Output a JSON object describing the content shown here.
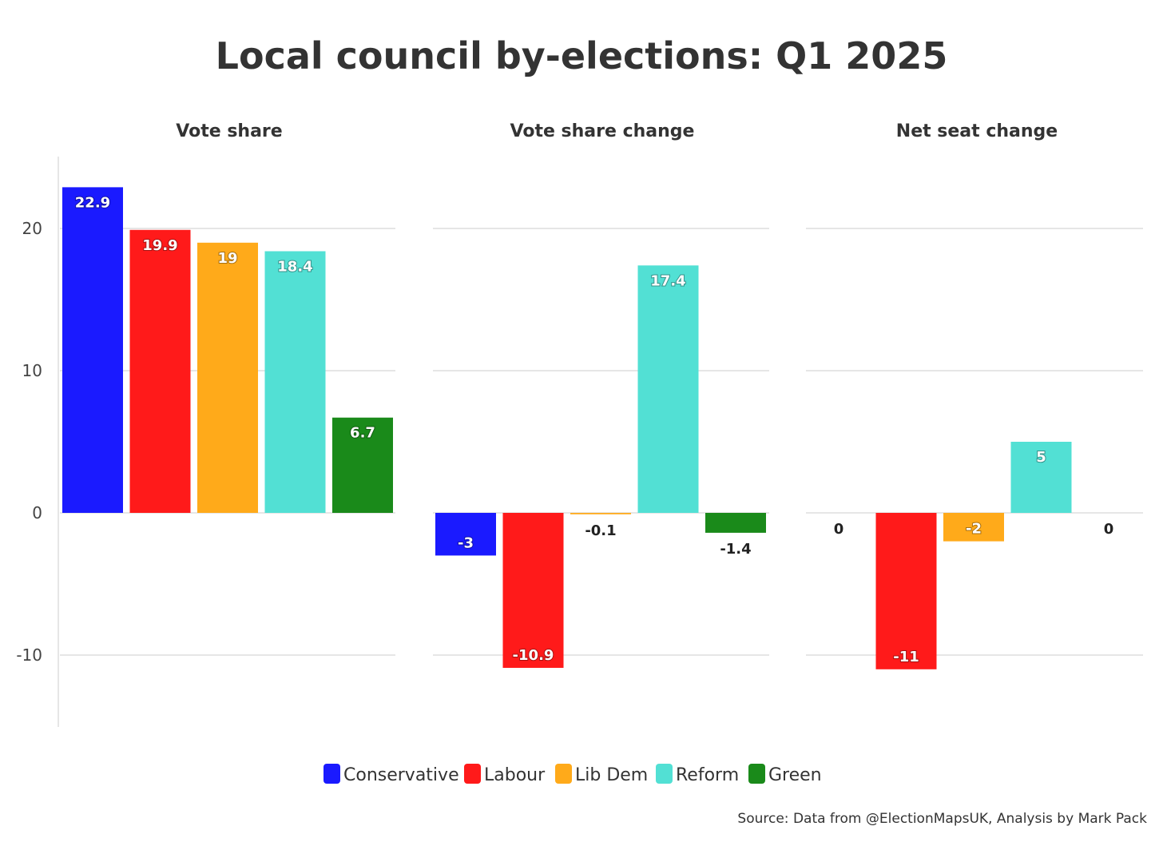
{
  "title": "Local council by-elections: Q1 2025",
  "source": "Source: Data from @ElectionMapsUK, Analysis by Mark Pack",
  "chart_data": {
    "type": "bar",
    "ylim": [
      -15,
      25
    ],
    "yticks": [
      -10,
      0,
      10,
      20
    ],
    "grid": true,
    "legend": "bottom",
    "series": [
      {
        "name": "Conservative",
        "color": "#1a1aff"
      },
      {
        "name": "Labour",
        "color": "#ff1a1a"
      },
      {
        "name": "Lib Dem",
        "color": "#ffaa1a"
      },
      {
        "name": "Reform",
        "color": "#52e0d4"
      },
      {
        "name": "Green",
        "color": "#1a8a1a"
      }
    ],
    "panels": [
      {
        "title": "Vote share",
        "values": [
          22.9,
          19.9,
          19,
          18.4,
          6.7
        ],
        "labels": [
          "22.9",
          "19.9",
          "19",
          "18.4",
          "6.7"
        ]
      },
      {
        "title": "Vote share change",
        "values": [
          -3,
          -10.9,
          -0.1,
          17.4,
          -1.4
        ],
        "labels": [
          "-3",
          "-10.9",
          "-0.1",
          "17.4",
          "-1.4"
        ]
      },
      {
        "title": "Net seat change",
        "values": [
          0,
          -11,
          -2,
          5,
          0
        ],
        "labels": [
          "0",
          "-11",
          "-2",
          "5",
          "0"
        ]
      }
    ]
  }
}
